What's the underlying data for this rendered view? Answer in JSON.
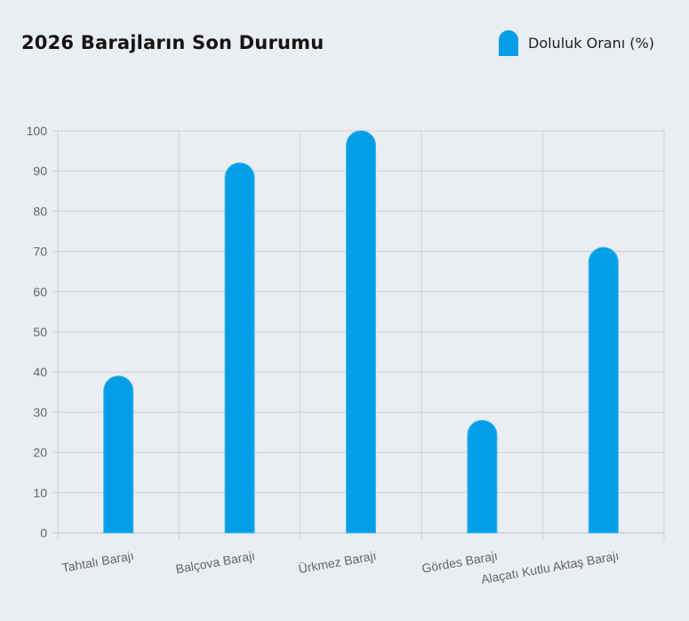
{
  "header": {
    "title": "2026 Barajların Son Durumu"
  },
  "legend": {
    "label": "Doluluk Oranı (%)",
    "color": "#049ee6"
  },
  "chart_data": {
    "type": "bar",
    "title": "2026 Barajların Son Durumu",
    "xlabel": "",
    "ylabel": "",
    "categories": [
      "Tahtalı Barajı",
      "Balçova Barajı",
      "Ürkmez Barajı",
      "Gördes Barajı",
      "Alaçatı Kutlu Aktaş Barajı"
    ],
    "series": [
      {
        "name": "Doluluk Oranı (%)",
        "values": [
          39,
          92,
          100,
          28,
          71
        ],
        "color": "#049ee6"
      }
    ],
    "ylim": [
      0,
      100
    ],
    "yticks": [
      0,
      10,
      20,
      30,
      40,
      50,
      60,
      70,
      80,
      90,
      100
    ],
    "grid": true,
    "legend_position": "top-right"
  }
}
